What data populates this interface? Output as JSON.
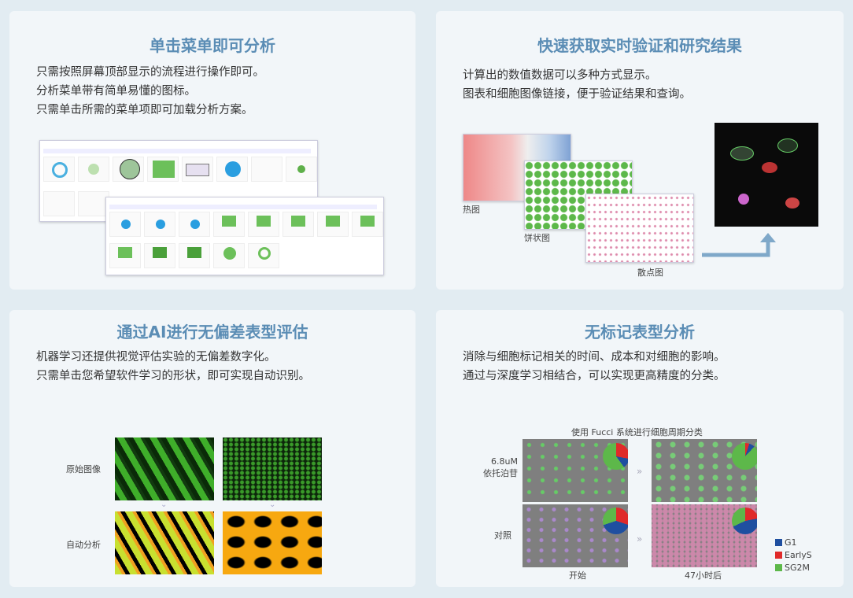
{
  "cards": [
    {
      "title": "单击菜单即可分析",
      "lines": [
        "只需按照屏幕顶部显示的流程进行操作即可。",
        "分析菜单带有简单易懂的图标。",
        "只需单击所需的菜单项即可加载分析方案。"
      ]
    },
    {
      "title": "快速获取实时验证和研究结果",
      "lines": [
        "计算出的数值数据可以多种方式显示。",
        "图表和细胞图像链接，便于验证结果和查询。"
      ],
      "labels": {
        "heatmap": "热图",
        "pie": "饼状图",
        "scatter": "散点图"
      }
    },
    {
      "title": "通过AI进行无偏差表型评估",
      "lines": [
        "机器学习还提供视觉评估实验的无偏差数字化。",
        "只需单击您希望软件学习的形状，即可实现自动识别。"
      ],
      "labels": {
        "original": "原始图像",
        "auto": "自动分析"
      }
    },
    {
      "title": "无标记表型分析",
      "lines": [
        "消除与细胞标记相关的时间、成本和对细胞的影响。",
        "通过与深度学习相结合，可以实现更高精度的分类。"
      ],
      "figure": {
        "caption": "使用 Fucci 系统进行细胞周期分类",
        "row1": "6.8uM",
        "row1b": "依托泊苷",
        "row2": "对照",
        "col1": "开始",
        "col2": "47小时后",
        "legend": [
          {
            "name": "G1",
            "color": "#1f4fa0"
          },
          {
            "name": "EarlyS",
            "color": "#e02a2a"
          },
          {
            "name": "SG2M",
            "color": "#5db84a"
          }
        ]
      }
    }
  ],
  "colors": {
    "title": "#5b8db5",
    "background": "#e2ecf2"
  }
}
